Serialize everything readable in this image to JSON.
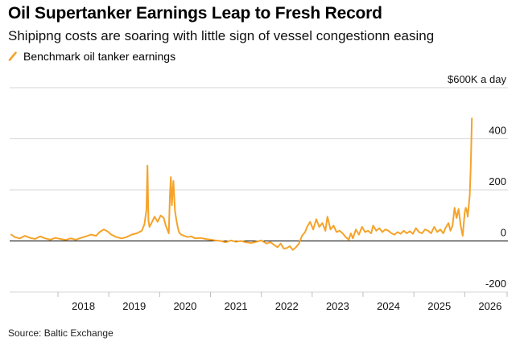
{
  "header": {
    "title": "Oil Supertanker Earnings Leap to Fresh Record",
    "subtitle": "Shipipng costs are soaring with little sign of vessel congestionn easing"
  },
  "legend": {
    "label": "Benchmark oil tanker earnings",
    "color": "#f5a32a"
  },
  "source": "Source: Baltic Exchange",
  "chart_data": {
    "type": "line",
    "title": "Oil Supertanker Earnings Leap to Fresh Record",
    "subtitle": "Shipipng costs are soaring with little sign of vessel congestionn easing",
    "xlabel": "",
    "ylabel": "",
    "unit_label": "$600K a day",
    "ylim": [
      -200,
      600
    ],
    "xlim": [
      2017.05,
      2026.85
    ],
    "y_ticks": [
      -200,
      0,
      200,
      400,
      600
    ],
    "y_tick_labels": [
      "-200",
      "0",
      "200",
      "400",
      "$600K a day"
    ],
    "x_ticks": [
      2018,
      2019,
      2020,
      2021,
      2022,
      2023,
      2024,
      2025,
      2026
    ],
    "x_tick_labels": [
      "2018",
      "2019",
      "2020",
      "2021",
      "2022",
      "2023",
      "2024",
      "2025",
      "2026"
    ],
    "grid": true,
    "legend_position": "top-left",
    "series": [
      {
        "name": "Benchmark oil tanker earnings",
        "color": "#f5a32a",
        "x": [
          2017.08,
          2017.15,
          2017.25,
          2017.35,
          2017.45,
          2017.55,
          2017.65,
          2017.75,
          2017.85,
          2017.95,
          2018.05,
          2018.15,
          2018.25,
          2018.35,
          2018.45,
          2018.55,
          2018.65,
          2018.75,
          2018.82,
          2018.9,
          2018.97,
          2019.05,
          2019.15,
          2019.25,
          2019.35,
          2019.45,
          2019.55,
          2019.65,
          2019.7,
          2019.74,
          2019.76,
          2019.78,
          2019.8,
          2019.84,
          2019.9,
          2019.96,
          2020.02,
          2020.08,
          2020.12,
          2020.16,
          2020.18,
          2020.2,
          2020.22,
          2020.24,
          2020.27,
          2020.3,
          2020.33,
          2020.36,
          2020.38,
          2020.42,
          2020.48,
          2020.55,
          2020.62,
          2020.7,
          2020.8,
          2020.9,
          2021.0,
          2021.1,
          2021.2,
          2021.3,
          2021.4,
          2021.5,
          2021.6,
          2021.7,
          2021.8,
          2021.9,
          2022.0,
          2022.1,
          2022.18,
          2022.25,
          2022.32,
          2022.38,
          2022.44,
          2022.5,
          2022.56,
          2022.62,
          2022.68,
          2022.74,
          2022.8,
          2022.86,
          2022.9,
          2022.96,
          2023.02,
          2023.08,
          2023.14,
          2023.2,
          2023.26,
          2023.3,
          2023.36,
          2023.42,
          2023.48,
          2023.54,
          2023.6,
          2023.66,
          2023.72,
          2023.76,
          2023.8,
          2023.86,
          2023.92,
          2023.98,
          2024.04,
          2024.1,
          2024.16,
          2024.2,
          2024.26,
          2024.32,
          2024.38,
          2024.44,
          2024.5,
          2024.56,
          2024.62,
          2024.68,
          2024.74,
          2024.8,
          2024.86,
          2024.92,
          2024.98,
          2025.04,
          2025.1,
          2025.16,
          2025.22,
          2025.28,
          2025.34,
          2025.4,
          2025.46,
          2025.52,
          2025.58,
          2025.62,
          2025.68,
          2025.72,
          2025.76,
          2025.8,
          2025.84,
          2025.88,
          2025.92,
          2025.96,
          2026.0,
          2026.02,
          2026.04,
          2026.06,
          2026.08,
          2026.1,
          2026.12,
          2026.14
        ],
        "values": [
          25,
          15,
          10,
          20,
          12,
          8,
          18,
          10,
          5,
          12,
          8,
          4,
          10,
          5,
          12,
          18,
          25,
          20,
          35,
          45,
          38,
          25,
          15,
          10,
          15,
          25,
          30,
          40,
          65,
          120,
          295,
          80,
          55,
          70,
          95,
          75,
          100,
          90,
          60,
          40,
          30,
          170,
          250,
          140,
          235,
          120,
          80,
          50,
          35,
          25,
          20,
          15,
          18,
          10,
          12,
          8,
          5,
          2,
          0,
          -5,
          2,
          -3,
          0,
          -5,
          -8,
          -3,
          2,
          -10,
          -5,
          -15,
          -25,
          -10,
          -30,
          -28,
          -20,
          -35,
          -25,
          -10,
          20,
          35,
          55,
          75,
          45,
          85,
          55,
          70,
          40,
          95,
          45,
          60,
          35,
          40,
          30,
          15,
          5,
          30,
          10,
          45,
          25,
          55,
          35,
          40,
          30,
          60,
          40,
          50,
          35,
          45,
          40,
          30,
          25,
          35,
          28,
          40,
          30,
          38,
          28,
          50,
          35,
          30,
          45,
          40,
          30,
          55,
          35,
          45,
          30,
          50,
          70,
          40,
          60,
          130,
          90,
          125,
          60,
          20,
          110,
          130,
          120,
          95,
          140,
          180,
          300,
          480
        ]
      }
    ]
  }
}
